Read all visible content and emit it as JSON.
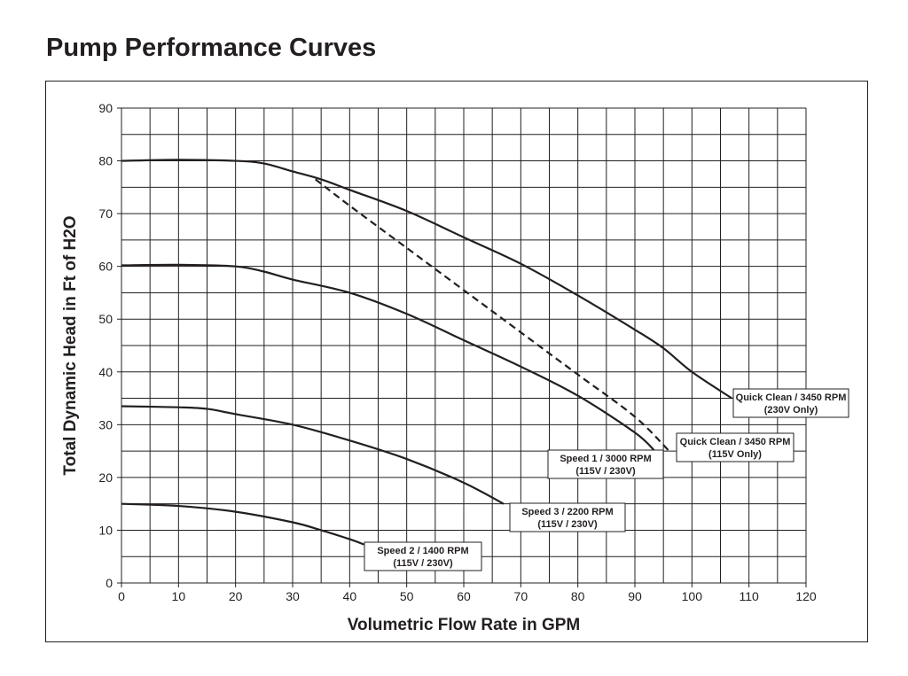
{
  "chart_data": {
    "type": "line",
    "title": "Pump Performance Curves",
    "xlabel": "Volumetric Flow Rate in GPM",
    "ylabel": "Total Dynamic Head in Ft of H2O",
    "xlim": [
      0,
      120
    ],
    "ylim": [
      0,
      90
    ],
    "xticks": [
      0,
      10,
      20,
      30,
      40,
      50,
      60,
      70,
      80,
      90,
      100,
      110,
      120
    ],
    "yticks": [
      0,
      10,
      20,
      30,
      40,
      50,
      60,
      70,
      80,
      90
    ],
    "grid": true,
    "series": [
      {
        "name": "Quick Clean / 3450 RPM",
        "note": "(230V Only)",
        "style": "solid",
        "x": [
          0,
          10,
          20,
          25,
          30,
          35,
          40,
          50,
          60,
          70,
          80,
          90,
          95,
          100,
          107
        ],
        "y": [
          80,
          80.2,
          80,
          79.5,
          78,
          76.5,
          74.5,
          70.5,
          65.5,
          60.5,
          54.5,
          48,
          44.5,
          40,
          35
        ]
      },
      {
        "name": "Quick Clean / 3450 RPM",
        "note": "(115V Only)",
        "style": "dashed",
        "x": [
          0,
          10,
          20,
          25,
          30,
          34,
          40,
          50,
          60,
          70,
          80,
          90,
          96
        ],
        "y": [
          79.8,
          80,
          79.8,
          79.3,
          78,
          76.5,
          71.5,
          63.5,
          55.5,
          47.5,
          39.5,
          31.5,
          25
        ]
      },
      {
        "name": "Speed 1 / 3000 RPM",
        "note": "(115V / 230V)",
        "style": "solid",
        "x": [
          0,
          10,
          20,
          25,
          30,
          40,
          50,
          60,
          70,
          80,
          90,
          93.5
        ],
        "y": [
          60.2,
          60.3,
          60,
          59,
          57.5,
          55,
          51,
          46,
          41,
          35.5,
          28.5,
          25
        ]
      },
      {
        "name": "Speed 3 / 2200 RPM",
        "note": "(115V / 230V)",
        "style": "solid",
        "x": [
          0,
          10,
          15,
          20,
          30,
          40,
          50,
          60,
          67
        ],
        "y": [
          33.5,
          33.3,
          33,
          32,
          30,
          27,
          23.5,
          19,
          15
        ]
      },
      {
        "name": "Speed 2 / 1400 RPM",
        "note": "(115V / 230V)",
        "style": "solid",
        "x": [
          0,
          10,
          20,
          30,
          35,
          40,
          42.5
        ],
        "y": [
          15,
          14.6,
          13.5,
          11.5,
          10,
          8.3,
          7.3
        ]
      }
    ]
  }
}
